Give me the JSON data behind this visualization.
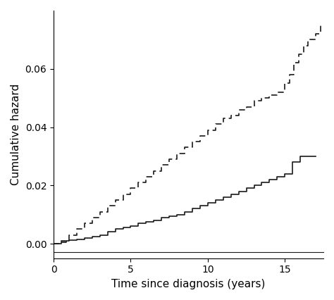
{
  "title": "",
  "xlabel": "Time since diagnosis (years)",
  "ylabel": "Cumulative hazard",
  "xlim": [
    0,
    17.5
  ],
  "ylim": [
    -0.005,
    0.08
  ],
  "yticks": [
    0.0,
    0.02,
    0.04,
    0.06
  ],
  "xticks": [
    0,
    5,
    10,
    15
  ],
  "line_color": "#1a1a1a",
  "background_color": "#ffffff",
  "solid_x": [
    0,
    0.3,
    0.5,
    0.8,
    1.0,
    1.5,
    2.0,
    2.5,
    3.0,
    3.5,
    4.0,
    4.5,
    5.0,
    5.5,
    6.0,
    6.5,
    7.0,
    7.5,
    8.0,
    8.5,
    9.0,
    9.5,
    10.0,
    10.5,
    11.0,
    11.5,
    12.0,
    12.5,
    13.0,
    13.5,
    14.0,
    14.5,
    15.0,
    15.5,
    16.0,
    16.5,
    17.0
  ],
  "solid_y": [
    0.0,
    0.0,
    0.0005,
    0.001,
    0.0012,
    0.0015,
    0.002,
    0.0025,
    0.003,
    0.004,
    0.005,
    0.0055,
    0.006,
    0.007,
    0.0075,
    0.008,
    0.009,
    0.0095,
    0.01,
    0.011,
    0.012,
    0.013,
    0.014,
    0.015,
    0.016,
    0.017,
    0.018,
    0.019,
    0.02,
    0.021,
    0.022,
    0.023,
    0.024,
    0.028,
    0.03,
    0.03,
    0.03
  ],
  "dashed_x": [
    0,
    0.5,
    1.0,
    1.5,
    2.0,
    2.5,
    3.0,
    3.5,
    4.0,
    4.5,
    5.0,
    5.5,
    6.0,
    6.5,
    7.0,
    7.5,
    8.0,
    8.5,
    9.0,
    9.5,
    10.0,
    10.5,
    11.0,
    11.5,
    12.0,
    12.5,
    13.0,
    13.5,
    14.0,
    14.5,
    15.0,
    15.3,
    15.6,
    15.9,
    16.2,
    16.5,
    17.0,
    17.3
  ],
  "dashed_y": [
    0.0,
    0.001,
    0.003,
    0.005,
    0.007,
    0.009,
    0.011,
    0.013,
    0.015,
    0.017,
    0.019,
    0.021,
    0.023,
    0.025,
    0.027,
    0.029,
    0.031,
    0.033,
    0.035,
    0.037,
    0.039,
    0.041,
    0.043,
    0.044,
    0.046,
    0.047,
    0.049,
    0.05,
    0.051,
    0.052,
    0.055,
    0.058,
    0.062,
    0.065,
    0.068,
    0.07,
    0.072,
    0.075
  ]
}
